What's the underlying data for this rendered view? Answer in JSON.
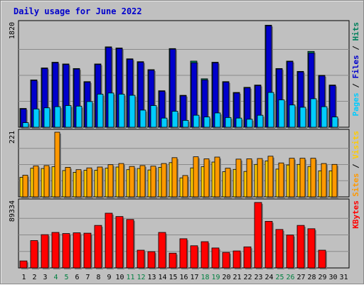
{
  "title": "Daily usage for June 2022",
  "colors": {
    "background": "#c0c0c0",
    "plot": "#c0c0c0",
    "grid": "#a0a0a0",
    "title": "#0000cc",
    "pages": "#00ccff",
    "files": "#0000cc",
    "hits": "#00805c",
    "visits": "#ff9900",
    "sites": "#ffcc00",
    "kbytes": "#ff0000",
    "weekend_day": "#008040",
    "weekday": "#000000"
  },
  "panel_labels": {
    "top": {
      "parts": [
        {
          "text": "Pages",
          "color": "#00ccff"
        },
        {
          "text": " / ",
          "color": "#000000"
        },
        {
          "text": "Files",
          "color": "#0000cc"
        },
        {
          "text": " / ",
          "color": "#000000"
        },
        {
          "text": "Hits",
          "color": "#00805c"
        }
      ]
    },
    "middle": {
      "parts": [
        {
          "text": "Sites",
          "color": "#ff9900"
        },
        {
          "text": " / ",
          "color": "#000000"
        },
        {
          "text": "Visits",
          "color": "#ffcc00"
        }
      ]
    },
    "bottom": {
      "parts": [
        {
          "text": "KBytes",
          "color": "#ff0000"
        }
      ]
    }
  },
  "chart_data": [
    {
      "type": "bar",
      "panel": "top",
      "ymax_label": "1820",
      "ylim": [
        0,
        1820
      ],
      "categories": [
        "1",
        "2",
        "3",
        "4",
        "5",
        "6",
        "7",
        "8",
        "9",
        "10",
        "11",
        "12",
        "13",
        "14",
        "15",
        "16",
        "17",
        "18",
        "19",
        "20",
        "21",
        "22",
        "23",
        "24",
        "25",
        "26",
        "27",
        "28",
        "29",
        "30",
        "31"
      ],
      "weekend_days": [
        "4",
        "5",
        "11",
        "12",
        "18",
        "19",
        "25",
        "26"
      ],
      "series": [
        {
          "name": "Hits",
          "values": [
            330,
            830,
            1040,
            1140,
            1110,
            1030,
            800,
            1110,
            1410,
            1390,
            1200,
            1150,
            1010,
            640,
            1380,
            560,
            1160,
            850,
            1140,
            800,
            610,
            700,
            740,
            1790,
            1030,
            1160,
            980,
            1330,
            910,
            740,
            0
          ]
        },
        {
          "name": "Files",
          "values": [
            320,
            820,
            1030,
            1130,
            1100,
            1020,
            790,
            1100,
            1400,
            1380,
            1190,
            1140,
            1000,
            630,
            1370,
            550,
            1130,
            830,
            1130,
            790,
            600,
            690,
            730,
            1780,
            1020,
            1150,
            970,
            1300,
            900,
            730,
            0
          ]
        },
        {
          "name": "Pages",
          "values": [
            80,
            320,
            340,
            360,
            380,
            370,
            450,
            580,
            600,
            580,
            560,
            300,
            380,
            160,
            280,
            120,
            210,
            180,
            250,
            170,
            160,
            140,
            210,
            610,
            480,
            390,
            350,
            500,
            360,
            180,
            0
          ]
        }
      ]
    },
    {
      "type": "bar",
      "panel": "middle",
      "ymax_label": "221",
      "ylim": [
        0,
        221
      ],
      "categories": [
        "1",
        "2",
        "3",
        "4",
        "5",
        "6",
        "7",
        "8",
        "9",
        "10",
        "11",
        "12",
        "13",
        "14",
        "15",
        "16",
        "17",
        "18",
        "19",
        "20",
        "21",
        "22",
        "23",
        "24",
        "25",
        "26",
        "27",
        "28",
        "29",
        "30",
        "31"
      ],
      "series": [
        {
          "name": "Visits",
          "values": [
            67,
            98,
            97,
            103,
            90,
            84,
            91,
            91,
            98,
            102,
            93,
            97,
            92,
            101,
            117,
            65,
            99,
            103,
            119,
            86,
            94,
            87,
            111,
            123,
            95,
            109,
            111,
            104,
            89,
            89,
            0
          ]
        },
        {
          "name": "Sites",
          "values": [
            74,
            106,
            107,
            221,
            101,
            93,
            99,
            102,
            110,
            114,
            104,
            107,
            105,
            114,
            134,
            73,
            137,
            130,
            136,
            98,
            129,
            130,
            131,
            139,
            116,
            132,
            132,
            132,
            114,
            111,
            0
          ]
        }
      ]
    },
    {
      "type": "bar",
      "panel": "bottom",
      "ymax_label": "89334",
      "ylim": [
        0,
        89334
      ],
      "categories": [
        "1",
        "2",
        "3",
        "4",
        "5",
        "6",
        "7",
        "8",
        "9",
        "10",
        "11",
        "12",
        "13",
        "14",
        "15",
        "16",
        "17",
        "18",
        "19",
        "20",
        "21",
        "22",
        "23",
        "24",
        "25",
        "26",
        "27",
        "28",
        "29",
        "30",
        "31"
      ],
      "series": [
        {
          "name": "KBytes",
          "values": [
            9500,
            37000,
            45000,
            48000,
            46500,
            47500,
            47000,
            57500,
            74000,
            69500,
            65500,
            24000,
            22000,
            48000,
            20000,
            39500,
            30000,
            35500,
            27000,
            21000,
            23000,
            28500,
            88500,
            63000,
            52000,
            44500,
            57500,
            53000,
            24000,
            0,
            0
          ]
        }
      ]
    }
  ]
}
